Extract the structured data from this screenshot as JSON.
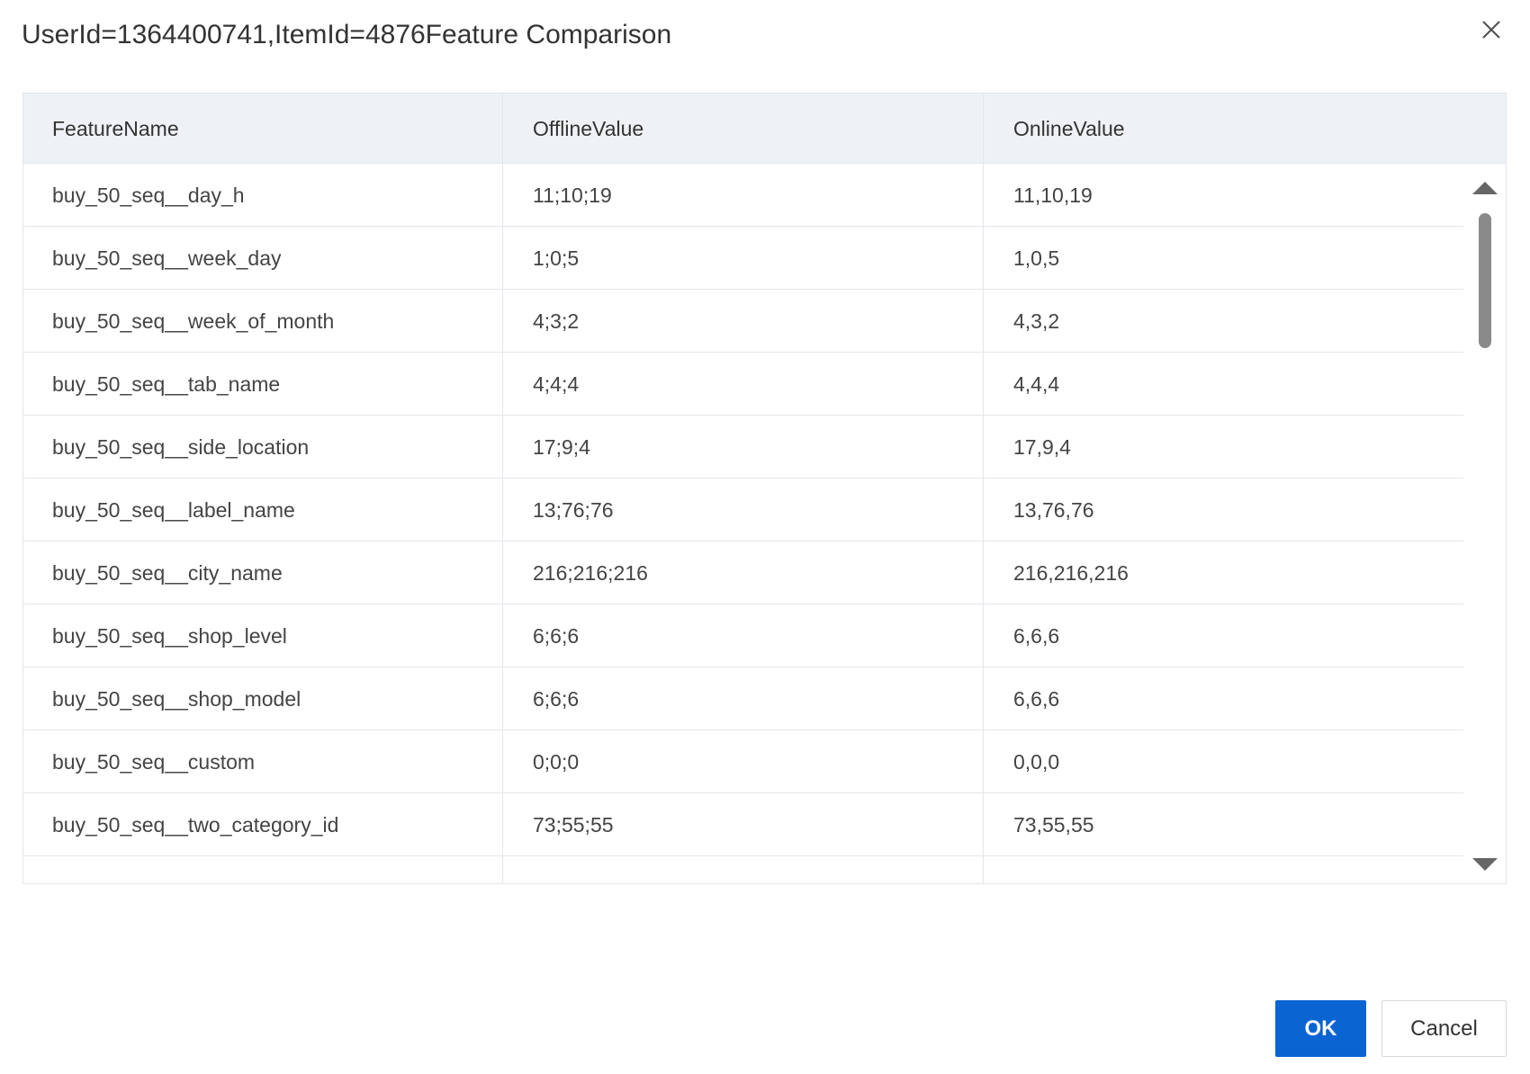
{
  "header": {
    "title": "UserId=1364400741,ItemId=4876Feature Comparison"
  },
  "table": {
    "columns": [
      "FeatureName",
      "OfflineValue",
      "OnlineValue"
    ],
    "rows": [
      [
        "buy_50_seq__day_h",
        "11;10;19",
        "11,10,19"
      ],
      [
        "buy_50_seq__week_day",
        "1;0;5",
        "1,0,5"
      ],
      [
        "buy_50_seq__week_of_month",
        "4;3;2",
        "4,3,2"
      ],
      [
        "buy_50_seq__tab_name",
        "4;4;4",
        "4,4,4"
      ],
      [
        "buy_50_seq__side_location",
        "17;9;4",
        "17,9,4"
      ],
      [
        "buy_50_seq__label_name",
        "13;76;76",
        "13,76,76"
      ],
      [
        "buy_50_seq__city_name",
        "216;216;216",
        "216,216,216"
      ],
      [
        "buy_50_seq__shop_level",
        "6;6;6",
        "6,6,6"
      ],
      [
        "buy_50_seq__shop_model",
        "6;6;6",
        "6,6,6"
      ],
      [
        "buy_50_seq__custom",
        "0;0;0",
        "0,0,0"
      ],
      [
        "buy_50_seq__two_category_id",
        "73;55;55",
        "73,55,55"
      ]
    ]
  },
  "footer": {
    "ok": "OK",
    "cancel": "Cancel"
  }
}
